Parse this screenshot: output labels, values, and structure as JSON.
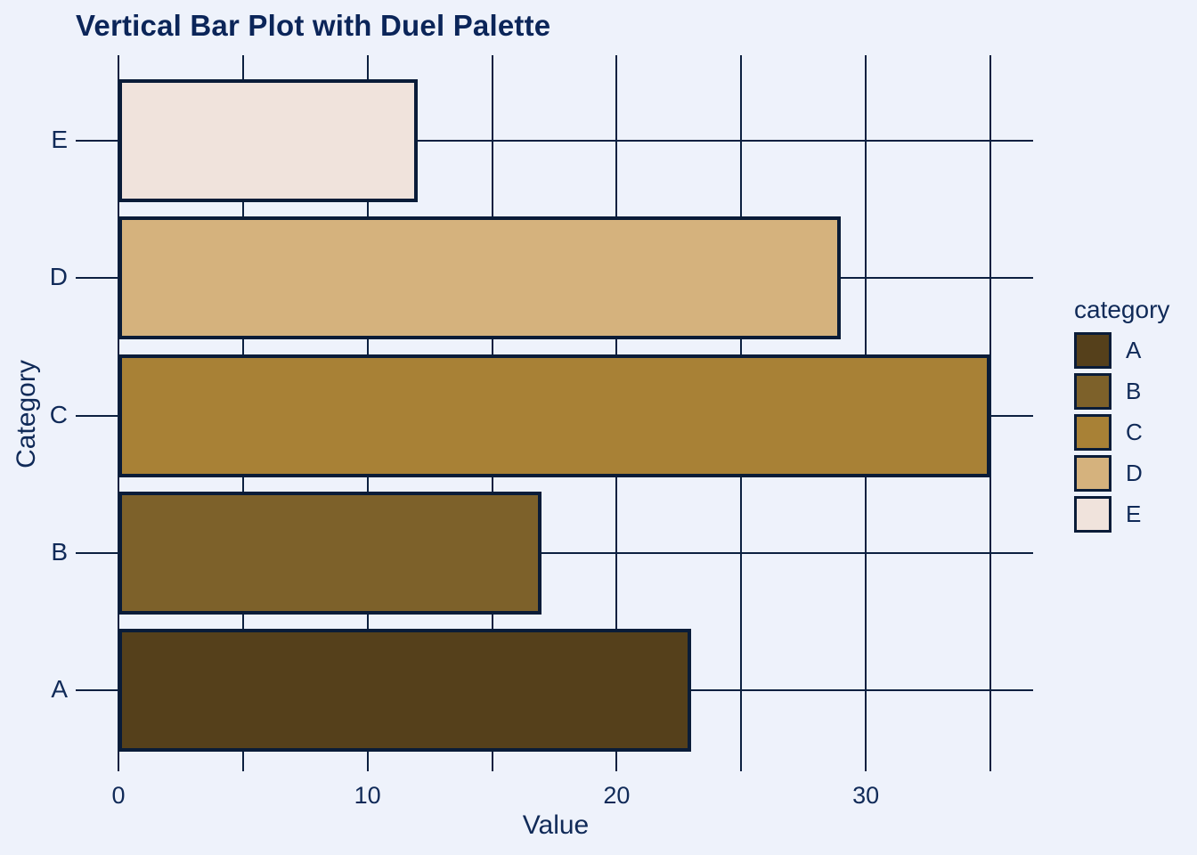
{
  "chart_data": {
    "type": "bar",
    "orientation": "horizontal",
    "title": "Vertical Bar Plot with Duel Palette",
    "xlabel": "Value",
    "ylabel": "Category",
    "categories": [
      "A",
      "B",
      "C",
      "D",
      "E"
    ],
    "values": [
      23,
      17,
      35,
      29,
      12
    ],
    "bar_order_top_to_bottom": [
      "E",
      "D",
      "C",
      "B",
      "A"
    ],
    "bar_colors": {
      "A": "#55401B",
      "B": "#7D612A",
      "C": "#A88136",
      "D": "#D5B27D",
      "E": "#F0E3DC"
    },
    "xlim": [
      0,
      36.7
    ],
    "x_major_tick_values": [
      0,
      10,
      20,
      30
    ],
    "x_major_tick_labels": [
      "0",
      "10",
      "20",
      "30"
    ],
    "x_gridline_values": [
      0,
      5,
      10,
      15,
      20,
      25,
      30,
      35
    ],
    "grid": true,
    "legend": {
      "title": "category",
      "position": "right",
      "entries": [
        "A",
        "B",
        "C",
        "D",
        "E"
      ]
    }
  },
  "style": {
    "background_color": "#EEF2FB",
    "grid_line_color": "#0C2040",
    "bar_edge_color": "#0A1C38",
    "text_color": "#102A58",
    "title_color": "#0B2559"
  }
}
